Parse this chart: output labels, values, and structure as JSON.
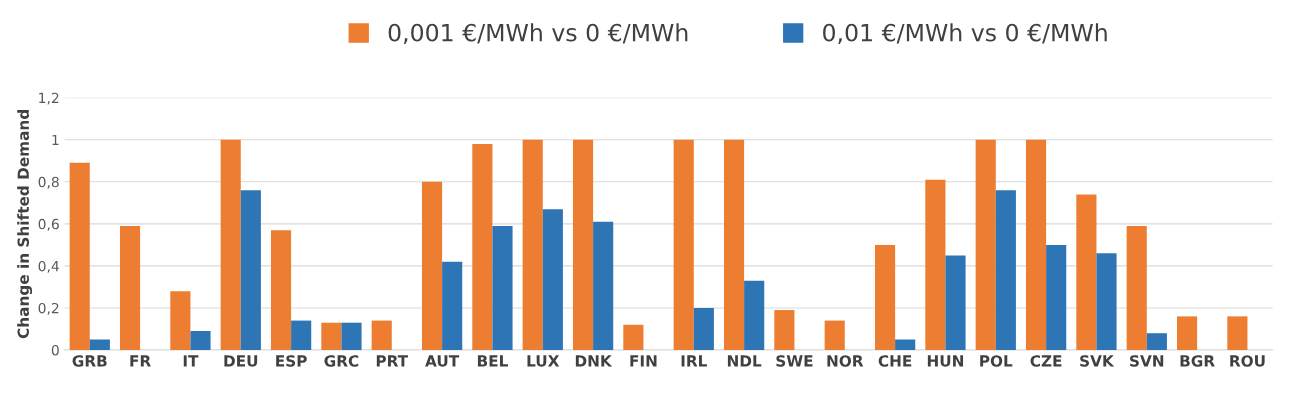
{
  "chart_data": {
    "type": "bar",
    "ylabel": "Change in Shifted Demand",
    "categories": [
      "GRB",
      "FR",
      "IT",
      "DEU",
      "ESP",
      "GRC",
      "PRT",
      "AUT",
      "BEL",
      "LUX",
      "DNK",
      "FIN",
      "IRL",
      "NDL",
      "SWE",
      "NOR",
      "CHE",
      "HUN",
      "POL",
      "CZE",
      "SVK",
      "SVN",
      "BGR",
      "ROU"
    ],
    "series": [
      {
        "name": "0,001 €/MWh vs 0 €/MWh",
        "color": "#ed7d31",
        "values": [
          0.89,
          0.59,
          0.28,
          1,
          0.57,
          0.13,
          0.14,
          0.8,
          0.98,
          1,
          1,
          0.12,
          1,
          1,
          0.19,
          0.14,
          0.5,
          0.81,
          1,
          1,
          0.74,
          0.59,
          0.16,
          0.16
        ]
      },
      {
        "name": "0,01 €/MWh vs 0 €/MWh",
        "color": "#2e75b6",
        "values": [
          0.05,
          0,
          0.09,
          0.76,
          0.14,
          0.13,
          0,
          0.42,
          0.59,
          0.67,
          0.61,
          0,
          0.2,
          0.33,
          0,
          0,
          0.05,
          0.45,
          0.76,
          0.5,
          0.46,
          0.08,
          0,
          0
        ]
      }
    ],
    "ylim": [
      0,
      1.2
    ],
    "yticks": [
      0,
      {
        "value": 0.2,
        "label": "0,2"
      },
      {
        "value": 0.4,
        "label": "0,4"
      },
      {
        "value": 0.6,
        "label": "0,6"
      },
      {
        "value": 0.8,
        "label": "0,8"
      },
      1,
      {
        "value": 1.2,
        "label": "1,2"
      }
    ],
    "grid": "y",
    "legend": "top"
  }
}
